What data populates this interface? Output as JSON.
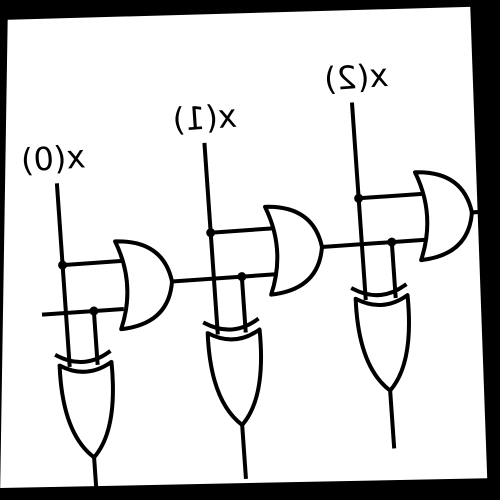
{
  "inputs": [
    {
      "label": "x(0)"
    },
    {
      "label": "x(1)"
    },
    {
      "label": "x(2)"
    }
  ]
}
